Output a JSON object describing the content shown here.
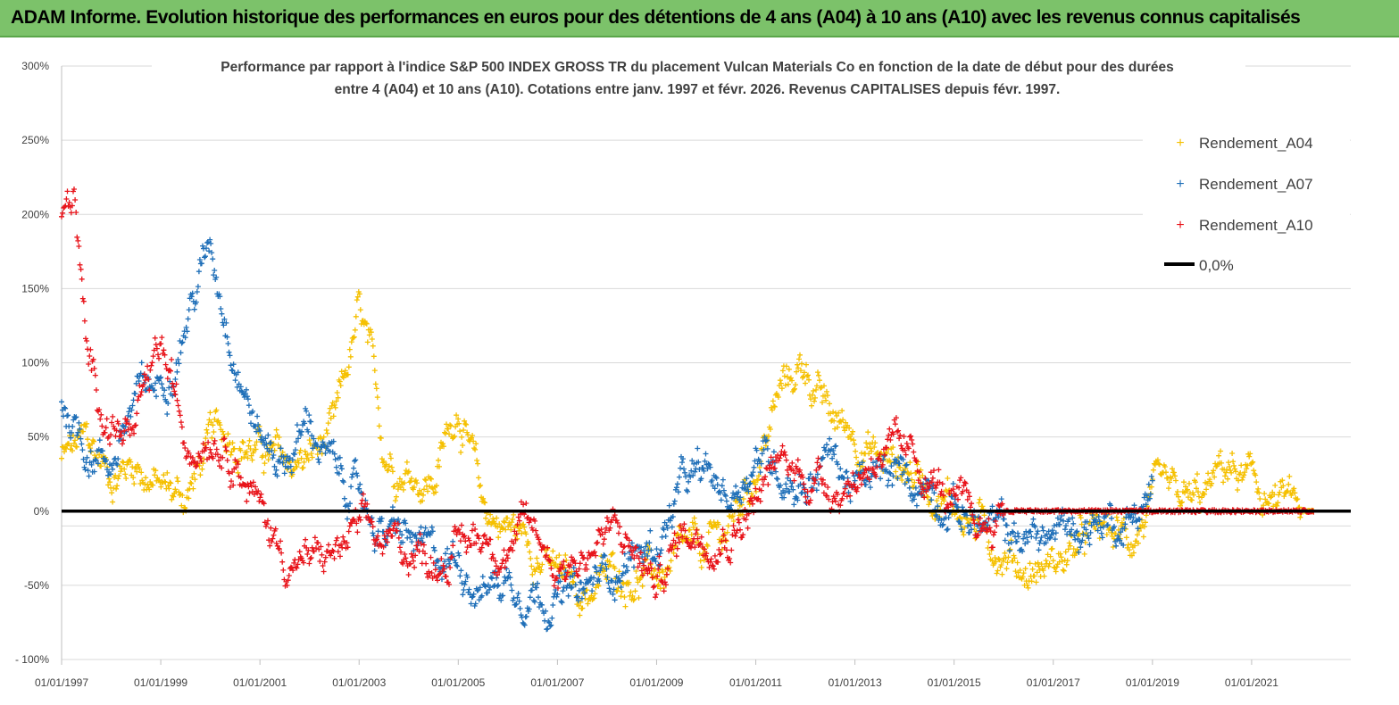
{
  "banner": {
    "title": "ADAM Informe. Evolution historique des performances en euros pour des détentions de 4 ans (A04) à 10 ans (A10) avec les revenus connus capitalisés"
  },
  "colors": {
    "banner_bg": "#7cc26a",
    "a04": "#f5c000",
    "a07": "#1f6fb8",
    "a10": "#e8141b",
    "zero": "#000000",
    "grid": "#d9d9d9"
  },
  "chart_data": {
    "type": "scatter",
    "title": [
      "Performance par rapport à l'indice S&P 500 INDEX GROSS TR  du placement Vulcan  Materials Co en fonction de la date de début pour des durées",
      "entre 4 (A04) et 10 ans (A10).  Cotations entre janv. 1997 et févr. 2026. Revenus CAPITALISES depuis févr. 1997."
    ],
    "xlabel": "",
    "ylabel": "",
    "x_range": [
      1997.0,
      2023.0
    ],
    "ylim": [
      -100,
      300
    ],
    "y_ticks": [
      300,
      250,
      200,
      150,
      100,
      50,
      0,
      -50,
      -100
    ],
    "y_tick_labels": [
      "300%",
      "250%",
      "200%",
      "150%",
      "100%",
      "50%",
      "0%",
      "-50%",
      "- 100%"
    ],
    "x_ticks": [
      1997,
      1999,
      2001,
      2003,
      2005,
      2007,
      2009,
      2011,
      2013,
      2015,
      2017,
      2019,
      2021
    ],
    "x_tick_labels": [
      "01/01/1997",
      "01/01/1999",
      "01/01/2001",
      "01/01/2003",
      "01/01/2005",
      "01/01/2007",
      "01/01/2009",
      "01/01/2011",
      "01/01/2013",
      "01/01/2015",
      "01/01/2017",
      "01/01/2019",
      "01/01/2021"
    ],
    "legend_position": "top-right",
    "series": [
      {
        "name": "Rendement_A04",
        "marker": "+",
        "x": [
          1997.0,
          1997.5,
          1998.0,
          1998.5,
          1999.0,
          1999.5,
          2000.0,
          2000.5,
          2001.0,
          2001.5,
          2002.0,
          2002.5,
          2003.0,
          2003.2,
          2003.5,
          2004.0,
          2004.5,
          2005.0,
          2005.5,
          2006.0,
          2006.5,
          2007.0,
          2007.5,
          2008.0,
          2008.5,
          2009.0,
          2009.5,
          2010.0,
          2010.5,
          2011.0,
          2011.5,
          2012.0,
          2012.5,
          2013.0,
          2013.5,
          2014.0,
          2014.5,
          2015.0,
          2015.5,
          2016.0,
          2016.5,
          2017.0,
          2017.5,
          2018.0,
          2018.5,
          2019.0,
          2019.5,
          2020.0,
          2020.5,
          2021.0,
          2021.5,
          2022.0,
          2022.25
        ],
        "values": [
          35,
          45,
          25,
          35,
          15,
          10,
          45,
          55,
          40,
          30,
          35,
          50,
          130,
          100,
          40,
          30,
          20,
          75,
          0,
          -10,
          -20,
          -45,
          -55,
          -45,
          -40,
          -45,
          -35,
          -30,
          -10,
          30,
          80,
          100,
          60,
          55,
          35,
          30,
          20,
          5,
          -10,
          -25,
          -40,
          -35,
          -25,
          -15,
          -20,
          5,
          0,
          5,
          30,
          15,
          5,
          0,
          0
        ]
      },
      {
        "name": "Rendement_A07",
        "marker": "+",
        "x": [
          1997.0,
          1997.5,
          1998.0,
          1998.5,
          1999.0,
          1999.5,
          2000.0,
          2000.5,
          2001.0,
          2001.5,
          2002.0,
          2002.5,
          2003.0,
          2003.5,
          2004.0,
          2004.5,
          2005.0,
          2005.5,
          2006.0,
          2006.5,
          2007.0,
          2007.5,
          2008.0,
          2008.5,
          2009.0,
          2009.5,
          2010.0,
          2010.5,
          2011.0,
          2011.5,
          2012.0,
          2012.5,
          2013.0,
          2013.5,
          2014.0,
          2014.5,
          2015.0,
          2015.5,
          2016.0,
          2016.5,
          2017.0,
          2017.5,
          2018.0,
          2018.5,
          2019.0
        ],
        "values": [
          75,
          45,
          35,
          75,
          85,
          130,
          180,
          110,
          50,
          35,
          60,
          25,
          10,
          -15,
          -20,
          -35,
          -30,
          -50,
          -45,
          -50,
          -55,
          -60,
          -40,
          -30,
          -25,
          15,
          20,
          10,
          40,
          30,
          20,
          40,
          15,
          20,
          20,
          20,
          5,
          -10,
          -15,
          -20,
          -15,
          -10,
          -5,
          -5,
          15
        ]
      },
      {
        "name": "Rendement_A10",
        "marker": "+",
        "x": [
          1997.0,
          1997.25,
          1997.5,
          1998.0,
          1998.5,
          1999.0,
          1999.5,
          2000.0,
          2000.5,
          2001.0,
          2001.5,
          2002.0,
          2002.5,
          2003.0,
          2003.5,
          2004.0,
          2004.5,
          2005.0,
          2005.5,
          2006.0,
          2006.5,
          2007.0,
          2007.5,
          2008.0,
          2008.5,
          2009.0,
          2009.5,
          2010.0,
          2010.5,
          2011.0,
          2011.5,
          2012.0,
          2012.5,
          2013.0,
          2013.5,
          2014.0,
          2014.5,
          2015.0,
          2015.5,
          2016.0,
          2016.5,
          2017.0,
          2018.0,
          2019.0,
          2020.0,
          2021.0,
          2022.0,
          2022.25
        ],
        "values": [
          200,
          215,
          100,
          60,
          50,
          110,
          45,
          60,
          45,
          0,
          -30,
          -35,
          -30,
          -15,
          -25,
          -25,
          -30,
          -25,
          -15,
          -20,
          -15,
          -35,
          -30,
          -15,
          -25,
          -50,
          -15,
          -10,
          -10,
          10,
          30,
          25,
          20,
          20,
          45,
          30,
          25,
          0,
          -15,
          0,
          0,
          0,
          0,
          0,
          0,
          0,
          0,
          0
        ]
      },
      {
        "name": "0,0%",
        "type": "line",
        "values": [
          0,
          0
        ]
      }
    ]
  }
}
